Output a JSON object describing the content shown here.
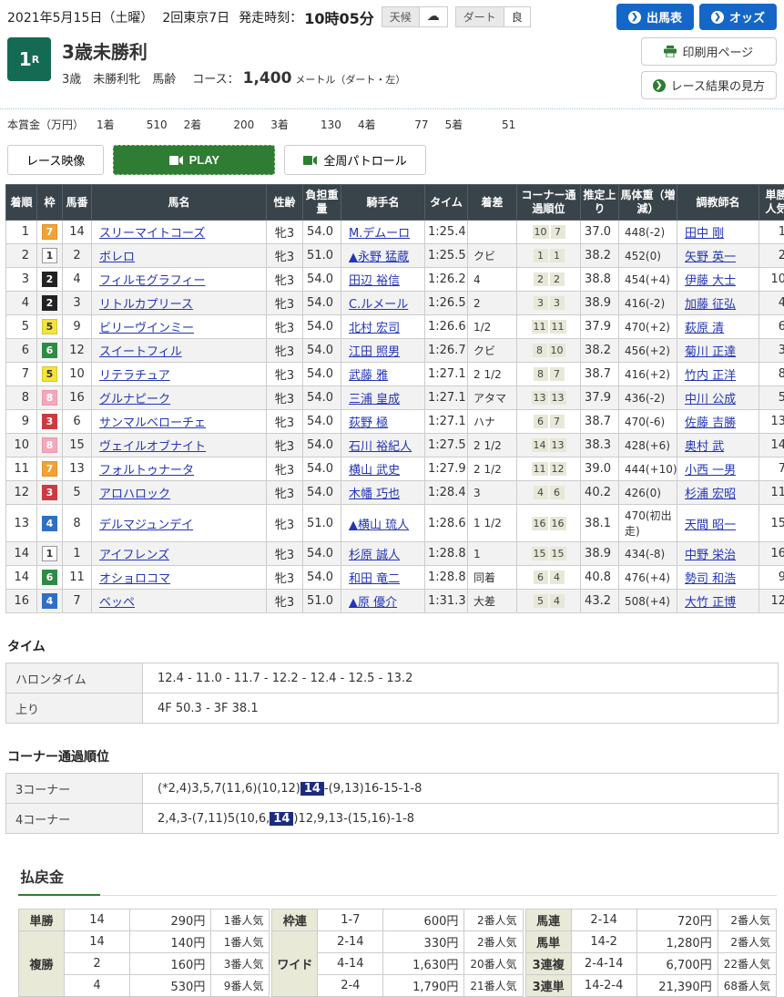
{
  "topbar": {
    "date": "2021年5月15日（土曜）",
    "meeting": "2回東京7日",
    "start_label": "発走時刻：",
    "start_time": "10時05分",
    "weather_label": "天候",
    "weather_icon": "☁",
    "track_label": "ダート",
    "track_value": "良",
    "entries_button": "出馬表",
    "odds_button": "オッズ",
    "chevron": "❯"
  },
  "race": {
    "number": "1",
    "number_suffix": "R",
    "title": "3歳未勝利",
    "conditions": "3歳　未勝利牝　馬齢",
    "course_label": "コース：",
    "course_distance": "1,400",
    "course_unit": "メートル（ダート・左）",
    "print_button": "印刷用ページ",
    "guide_button": "レース結果の見方"
  },
  "prize": {
    "label": "本賞金（万円）",
    "items": [
      {
        "rank": "1着",
        "amount": "510"
      },
      {
        "rank": "2着",
        "amount": "200"
      },
      {
        "rank": "3着",
        "amount": "130"
      },
      {
        "rank": "4着",
        "amount": "77"
      },
      {
        "rank": "5着",
        "amount": "51"
      }
    ]
  },
  "video": {
    "race_video": "レース映像",
    "play": "PLAY",
    "patrol": "全周パトロール"
  },
  "results": {
    "headers": [
      "着順",
      "枠",
      "馬番",
      "馬名",
      "性齢",
      "負担重量",
      "騎手名",
      "タイム",
      "着差",
      "コーナー通過順位",
      "推定上り",
      "馬体重（増減）",
      "調教師名",
      "単勝人気"
    ],
    "rows": [
      {
        "pos": "1",
        "waku": "7",
        "num": "14",
        "horse": "スリーマイトコーズ",
        "sexage": "牝3",
        "weight": "54.0",
        "jockey": "M.デムーロ",
        "time": "1:25.4",
        "margin": "",
        "corner3": "10",
        "corner4": "7",
        "last3f": "37.0",
        "bodyweight": "448(-2)",
        "trainer": "田中 剛",
        "fav": "1"
      },
      {
        "pos": "2",
        "waku": "1",
        "num": "2",
        "horse": "ボレロ",
        "sexage": "牝3",
        "weight": "51.0",
        "jockey": "▲永野 猛蔵",
        "time": "1:25.5",
        "margin": "クビ",
        "corner3": "1",
        "corner4": "1",
        "last3f": "38.2",
        "bodyweight": "452(0)",
        "trainer": "矢野 英一",
        "fav": "2"
      },
      {
        "pos": "3",
        "waku": "2",
        "num": "4",
        "horse": "フィルモグラフィー",
        "sexage": "牝3",
        "weight": "54.0",
        "jockey": "田辺 裕信",
        "time": "1:26.2",
        "margin": "4",
        "corner3": "2",
        "corner4": "2",
        "last3f": "38.8",
        "bodyweight": "454(+4)",
        "trainer": "伊藤 大士",
        "fav": "10"
      },
      {
        "pos": "4",
        "waku": "2",
        "num": "3",
        "horse": "リトルカプリース",
        "sexage": "牝3",
        "weight": "54.0",
        "jockey": "C.ルメール",
        "time": "1:26.5",
        "margin": "2",
        "corner3": "3",
        "corner4": "3",
        "last3f": "38.9",
        "bodyweight": "416(-2)",
        "trainer": "加藤 征弘",
        "fav": "4"
      },
      {
        "pos": "5",
        "waku": "5",
        "num": "9",
        "horse": "ビリーヴインミー",
        "sexage": "牝3",
        "weight": "54.0",
        "jockey": "北村 宏司",
        "time": "1:26.6",
        "margin": "1/2",
        "corner3": "11",
        "corner4": "11",
        "last3f": "37.9",
        "bodyweight": "470(+2)",
        "trainer": "萩原 清",
        "fav": "6"
      },
      {
        "pos": "6",
        "waku": "6",
        "num": "12",
        "horse": "スイートフィル",
        "sexage": "牝3",
        "weight": "54.0",
        "jockey": "江田 照男",
        "time": "1:26.7",
        "margin": "クビ",
        "corner3": "8",
        "corner4": "10",
        "last3f": "38.2",
        "bodyweight": "456(+2)",
        "trainer": "菊川 正達",
        "fav": "3"
      },
      {
        "pos": "7",
        "waku": "5",
        "num": "10",
        "horse": "リテラチュア",
        "sexage": "牝3",
        "weight": "54.0",
        "jockey": "武藤 雅",
        "time": "1:27.1",
        "margin": "2 1/2",
        "corner3": "8",
        "corner4": "7",
        "last3f": "38.7",
        "bodyweight": "416(+2)",
        "trainer": "竹内 正洋",
        "fav": "8"
      },
      {
        "pos": "8",
        "waku": "8",
        "num": "16",
        "horse": "グルナピーク",
        "sexage": "牝3",
        "weight": "54.0",
        "jockey": "三浦 皇成",
        "time": "1:27.1",
        "margin": "アタマ",
        "corner3": "13",
        "corner4": "13",
        "last3f": "37.9",
        "bodyweight": "436(-2)",
        "trainer": "中川 公成",
        "fav": "5"
      },
      {
        "pos": "9",
        "waku": "3",
        "num": "6",
        "horse": "サンマルベローチェ",
        "sexage": "牝3",
        "weight": "54.0",
        "jockey": "荻野 極",
        "time": "1:27.1",
        "margin": "ハナ",
        "corner3": "6",
        "corner4": "7",
        "last3f": "38.7",
        "bodyweight": "470(-6)",
        "trainer": "佐藤 吉勝",
        "fav": "13"
      },
      {
        "pos": "10",
        "waku": "8",
        "num": "15",
        "horse": "ヴェイルオブナイト",
        "sexage": "牝3",
        "weight": "54.0",
        "jockey": "石川 裕紀人",
        "time": "1:27.5",
        "margin": "2 1/2",
        "corner3": "14",
        "corner4": "13",
        "last3f": "38.3",
        "bodyweight": "428(+6)",
        "trainer": "奥村 武",
        "fav": "14"
      },
      {
        "pos": "11",
        "waku": "7",
        "num": "13",
        "horse": "フォルトゥナータ",
        "sexage": "牝3",
        "weight": "54.0",
        "jockey": "横山 武史",
        "time": "1:27.9",
        "margin": "2 1/2",
        "corner3": "11",
        "corner4": "12",
        "last3f": "39.0",
        "bodyweight": "444(+10)",
        "trainer": "小西 一男",
        "fav": "7"
      },
      {
        "pos": "12",
        "waku": "3",
        "num": "5",
        "horse": "アロハロック",
        "sexage": "牝3",
        "weight": "54.0",
        "jockey": "木幡 巧也",
        "time": "1:28.4",
        "margin": "3",
        "corner3": "4",
        "corner4": "6",
        "last3f": "40.2",
        "bodyweight": "426(0)",
        "trainer": "杉浦 宏昭",
        "fav": "11"
      },
      {
        "pos": "13",
        "waku": "4",
        "num": "8",
        "horse": "デルマジュンデイ",
        "sexage": "牝3",
        "weight": "51.0",
        "jockey": "▲横山 琉人",
        "time": "1:28.6",
        "margin": "1 1/2",
        "corner3": "16",
        "corner4": "16",
        "last3f": "38.1",
        "bodyweight": "470(初出走)",
        "trainer": "天間 昭一",
        "fav": "15"
      },
      {
        "pos": "14",
        "waku": "1",
        "num": "1",
        "horse": "アイフレンズ",
        "sexage": "牝3",
        "weight": "54.0",
        "jockey": "杉原 誠人",
        "time": "1:28.8",
        "margin": "1",
        "corner3": "15",
        "corner4": "15",
        "last3f": "38.9",
        "bodyweight": "434(-8)",
        "trainer": "中野 栄治",
        "fav": "16"
      },
      {
        "pos": "14",
        "waku": "6",
        "num": "11",
        "horse": "オショロコマ",
        "sexage": "牝3",
        "weight": "54.0",
        "jockey": "和田 竜二",
        "time": "1:28.8",
        "margin": "同着",
        "corner3": "6",
        "corner4": "4",
        "last3f": "40.8",
        "bodyweight": "476(+4)",
        "trainer": "勢司 和浩",
        "fav": "9"
      },
      {
        "pos": "16",
        "waku": "4",
        "num": "7",
        "horse": "ベッペ",
        "sexage": "牝3",
        "weight": "51.0",
        "jockey": "▲原 優介",
        "time": "1:31.3",
        "margin": "大差",
        "corner3": "5",
        "corner4": "4",
        "last3f": "43.2",
        "bodyweight": "508(+4)",
        "trainer": "大竹 正博",
        "fav": "12"
      }
    ]
  },
  "time_section": {
    "title": "タイム",
    "rows": [
      {
        "label": "ハロンタイム",
        "value": "12.4 - 11.0 - 11.7 - 12.2 - 12.4 - 12.5 - 13.2"
      },
      {
        "label": "上り",
        "value": "4F 50.3 - 3F 38.1"
      }
    ]
  },
  "corner_section": {
    "title": "コーナー通過順位",
    "rows": [
      {
        "label": "3コーナー",
        "before": "(*2,4)3,5,7(11,6)(10,12)",
        "highlight": "14",
        "after": "-(9,13)16-15-1-8"
      },
      {
        "label": "4コーナー",
        "before": "2,4,3-(7,11)5(10,6,",
        "highlight": "14",
        "after": ")12,9,13-(15,16)-1-8"
      }
    ]
  },
  "payout": {
    "title": "払戻金",
    "col1": [
      {
        "label": "単勝",
        "rows": [
          {
            "comb": "14",
            "amount": "290円",
            "fav": "1番人気"
          }
        ]
      },
      {
        "label": "複勝",
        "rows": [
          {
            "comb": "14",
            "amount": "140円",
            "fav": "1番人気"
          },
          {
            "comb": "2",
            "amount": "160円",
            "fav": "3番人気"
          },
          {
            "comb": "4",
            "amount": "530円",
            "fav": "9番人気"
          }
        ]
      }
    ],
    "col2": [
      {
        "label": "枠連",
        "rows": [
          {
            "comb": "1-7",
            "amount": "600円",
            "fav": "2番人気"
          }
        ]
      },
      {
        "label": "ワイド",
        "rows": [
          {
            "comb": "2-14",
            "amount": "330円",
            "fav": "2番人気"
          },
          {
            "comb": "4-14",
            "amount": "1,630円",
            "fav": "20番人気"
          },
          {
            "comb": "2-4",
            "amount": "1,790円",
            "fav": "21番人気"
          }
        ]
      }
    ],
    "col3": [
      {
        "label": "馬連",
        "rows": [
          {
            "comb": "2-14",
            "amount": "720円",
            "fav": "2番人気"
          }
        ]
      },
      {
        "label": "馬単",
        "rows": [
          {
            "comb": "14-2",
            "amount": "1,280円",
            "fav": "2番人気"
          }
        ]
      },
      {
        "label": "3連複",
        "rows": [
          {
            "comb": "2-4-14",
            "amount": "6,700円",
            "fav": "22番人気"
          }
        ]
      },
      {
        "label": "3連単",
        "rows": [
          {
            "comb": "14-2-4",
            "amount": "21,390円",
            "fav": "68番人気"
          }
        ]
      }
    ]
  }
}
